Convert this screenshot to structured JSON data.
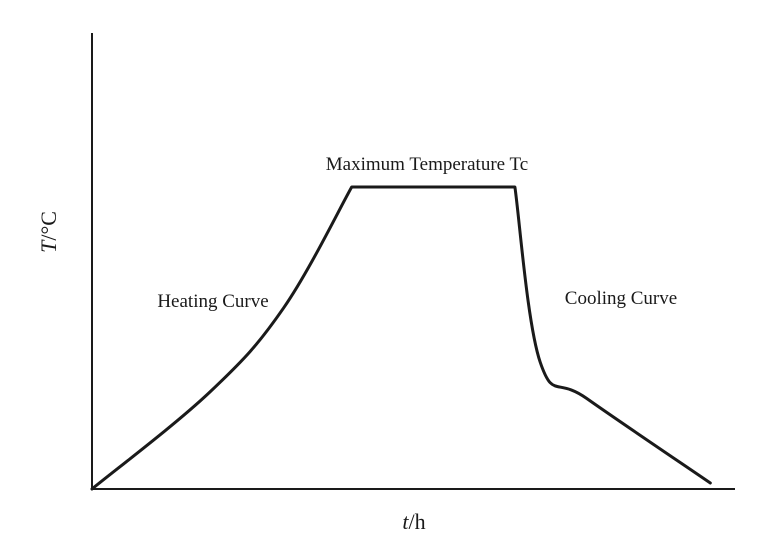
{
  "chart_data": {
    "type": "line",
    "xlabel_italic": "t",
    "xlabel_unit": "/h",
    "ylabel_italic": "T",
    "ylabel_unit": "/°C",
    "annotations": {
      "peak": "Maximum Temperature Tc",
      "heating": "Heating Curve",
      "cooling": "Cooling Curve"
    },
    "series": [
      {
        "points": [
          {
            "x": 0.0,
            "y": 0.0
          },
          {
            "x": 0.19,
            "y": 0.32
          },
          {
            "x": 0.31,
            "y": 0.6
          },
          {
            "x": 0.42,
            "y": 1.0
          },
          {
            "x": 0.684,
            "y": 1.0
          },
          {
            "x": 0.725,
            "y": 0.42
          },
          {
            "x": 0.8,
            "y": 0.3
          },
          {
            "x": 1.0,
            "y": 0.02
          }
        ]
      }
    ],
    "xlim": [
      0,
      1.04
    ],
    "ylim": [
      0,
      1.51
    ],
    "grid": false,
    "legend": "none",
    "color": "#1a1a1a"
  }
}
